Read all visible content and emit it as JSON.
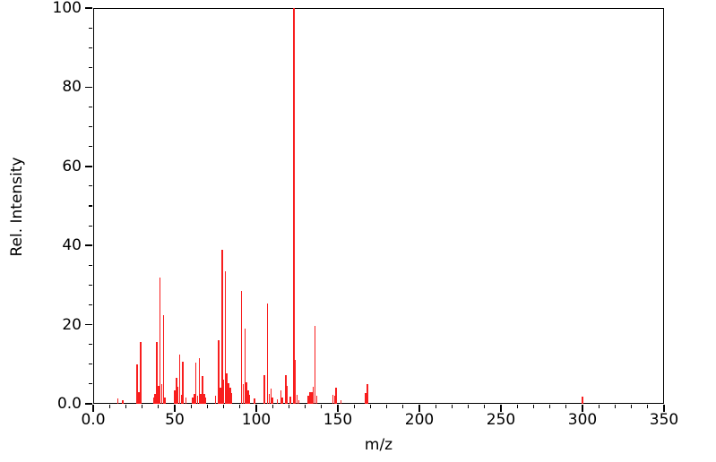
{
  "figure": {
    "background": "#ffffff",
    "frame_color": "#000000"
  },
  "chart_data": {
    "type": "bar",
    "subtype": "mass-spectrum-stick-plot",
    "title": "",
    "xlabel": "m/z",
    "ylabel": "Rel. Intensity",
    "xlim": [
      0,
      350
    ],
    "ylim": [
      0,
      100
    ],
    "grid": "off",
    "legend": "none",
    "frame": "full-box",
    "bar_color": "#f81e1e",
    "x_major_ticks": [
      0,
      50,
      100,
      150,
      200,
      250,
      300,
      350
    ],
    "x_major_tick_labels": [
      "0.0",
      "50",
      "100",
      "150",
      "200",
      "250",
      "300",
      "350"
    ],
    "x_minor_tick_step": 10,
    "y_major_ticks": [
      0,
      20,
      40,
      60,
      80,
      100
    ],
    "y_major_tick_labels": [
      "0.0",
      "20",
      "40",
      "60",
      "80",
      "100"
    ],
    "y_minor_tick_step": 5,
    "peaks": {
      "mz": [
        15,
        18,
        27,
        28,
        29,
        37,
        38,
        39,
        40,
        41,
        42,
        43,
        44,
        50,
        51,
        52,
        53,
        54,
        55,
        57,
        61,
        62,
        63,
        64,
        65,
        66,
        67,
        68,
        69,
        75,
        77,
        78,
        79,
        80,
        81,
        82,
        83,
        84,
        85,
        91,
        92,
        93,
        94,
        95,
        96,
        99,
        105,
        107,
        108,
        109,
        110,
        113,
        115,
        116,
        118,
        119,
        121,
        123,
        124,
        125,
        126,
        132,
        133,
        134,
        135,
        136,
        137,
        147,
        148,
        149,
        152,
        167,
        168,
        300
      ],
      "intensity": [
        1.4,
        1.0,
        10,
        3,
        15.5,
        1.5,
        2.5,
        15.5,
        4.5,
        32,
        5,
        22.5,
        1.5,
        3.4,
        6.5,
        4.2,
        12.5,
        2.3,
        10.7,
        1.5,
        1.5,
        2.5,
        10.5,
        2,
        11.5,
        2.5,
        7,
        2.5,
        1.5,
        2,
        16,
        4,
        39,
        6,
        33.5,
        7.6,
        5.3,
        4.1,
        2.7,
        28.5,
        5,
        19,
        5.5,
        3.5,
        2.2,
        1.4,
        7.2,
        25.3,
        2.5,
        3.8,
        1.5,
        1.2,
        3.4,
        1.5,
        7.2,
        4.6,
        1.8,
        100,
        11,
        2.3,
        1,
        2,
        3,
        3,
        4.2,
        19.7,
        2,
        2.3,
        2,
        4,
        1,
        2.7,
        5,
        1.7
      ]
    },
    "base_peak": {
      "mz": 123,
      "intensity": 100
    }
  }
}
